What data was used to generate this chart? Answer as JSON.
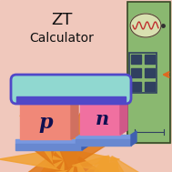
{
  "title_line1": "ZT",
  "title_line2": "Calculator",
  "p_label": "p",
  "n_label": "n",
  "p_block_color": "#f08878",
  "n_block_color": "#f070a0",
  "p_block_side": "#d07060",
  "n_block_side": "#d05888",
  "top_bridge_color": "#80cec8",
  "top_bridge_top": "#90d8d0",
  "bridge_outline_color": "#5048c8",
  "base_color": "#6888d0",
  "base_top_color": "#7898e0",
  "base_side_color": "#4060b0",
  "green_panel_color": "#8ab870",
  "panel_border_color": "#3a4828",
  "bg_color": "#f0c8bc",
  "orange1": "#f0a030",
  "orange2": "#e07818",
  "figsize": [
    1.89,
    1.89
  ],
  "dpi": 100
}
